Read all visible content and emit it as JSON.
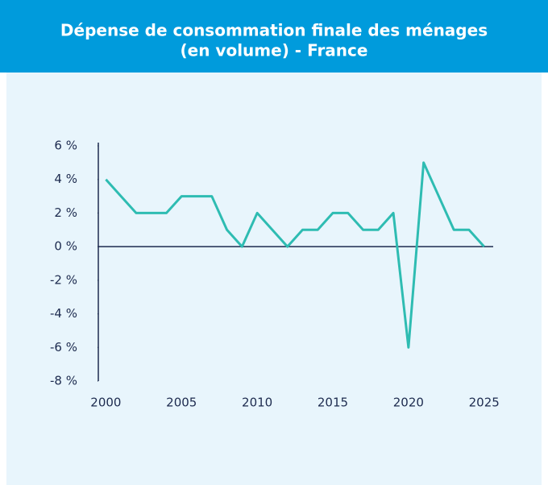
{
  "chart_data": {
    "type": "line",
    "title": [
      "Dépense de consommation finale des ménages",
      "(en volume) - France"
    ],
    "x": [
      2000,
      2001,
      2002,
      2003,
      2004,
      2005,
      2006,
      2007,
      2008,
      2009,
      2010,
      2011,
      2012,
      2013,
      2014,
      2015,
      2016,
      2017,
      2018,
      2019,
      2020,
      2021,
      2022,
      2023,
      2024,
      2025
    ],
    "series": [
      {
        "name": "Dépense de consommation finale des ménages",
        "color": "#2ebcb2",
        "values": [
          4,
          3,
          2,
          2,
          2,
          3,
          3,
          3,
          1,
          0,
          2,
          1,
          0,
          1,
          1,
          2,
          2,
          1,
          1,
          2,
          -6,
          5,
          3,
          1,
          1,
          0
        ]
      }
    ],
    "xlim": [
      1999.5,
      2025.6
    ],
    "xticks": [
      2000,
      2005,
      2010,
      2015,
      2020,
      2025
    ],
    "ylim": [
      -8,
      6
    ],
    "yticks": [
      {
        "value": -8,
        "label": "-8 %"
      },
      {
        "value": -6,
        "label": "-6 %"
      },
      {
        "value": -4,
        "label": "-4 %"
      },
      {
        "value": -2,
        "label": "-2 %"
      },
      {
        "value": 0,
        "label": "0 %"
      },
      {
        "value": 2,
        "label": "2 %"
      },
      {
        "value": 4,
        "label": "4 %"
      },
      {
        "value": 6,
        "label": "6 %"
      }
    ]
  }
}
